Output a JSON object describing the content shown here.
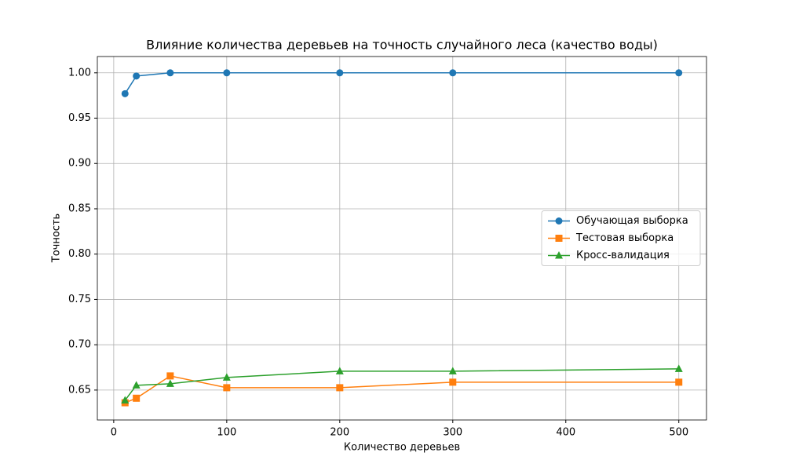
{
  "chart_data": {
    "type": "line",
    "title": "Влияние количества деревьев на точность случайного леса (качество воды)",
    "xlabel": "Количество деревьев",
    "ylabel": "Точность",
    "x": [
      10,
      20,
      50,
      100,
      200,
      300,
      500
    ],
    "series": [
      {
        "name": "Обучающая выборка",
        "color": "#1f77b4",
        "marker": "circle",
        "values": [
          0.977,
          0.9965,
          1.0,
          1.0,
          1.0,
          1.0,
          1.0
        ]
      },
      {
        "name": "Тестовая выборка",
        "color": "#ff7f0e",
        "marker": "square",
        "values": [
          0.636,
          0.641,
          0.6656,
          0.6526,
          0.6526,
          0.6587,
          0.6587
        ]
      },
      {
        "name": "Кросс-валидация",
        "color": "#2ca02c",
        "marker": "triangle",
        "values": [
          0.6387,
          0.6552,
          0.657,
          0.6639,
          0.6708,
          0.6708,
          0.6734
        ]
      }
    ],
    "xlim": [
      -14.5,
      524.5
    ],
    "xticks": [
      0,
      100,
      200,
      300,
      400,
      500
    ],
    "ylim": [
      0.617,
      1.018
    ],
    "yticks": [
      0.65,
      {
        "value": 0.7,
        "label": "0.70"
      },
      0.75,
      {
        "value": 0.8,
        "label": "0.80"
      },
      0.85,
      {
        "value": 0.9,
        "label": "0.90"
      },
      0.95,
      {
        "value": 1.0,
        "label": "1.00"
      }
    ],
    "grid": true,
    "legend": "center right"
  }
}
